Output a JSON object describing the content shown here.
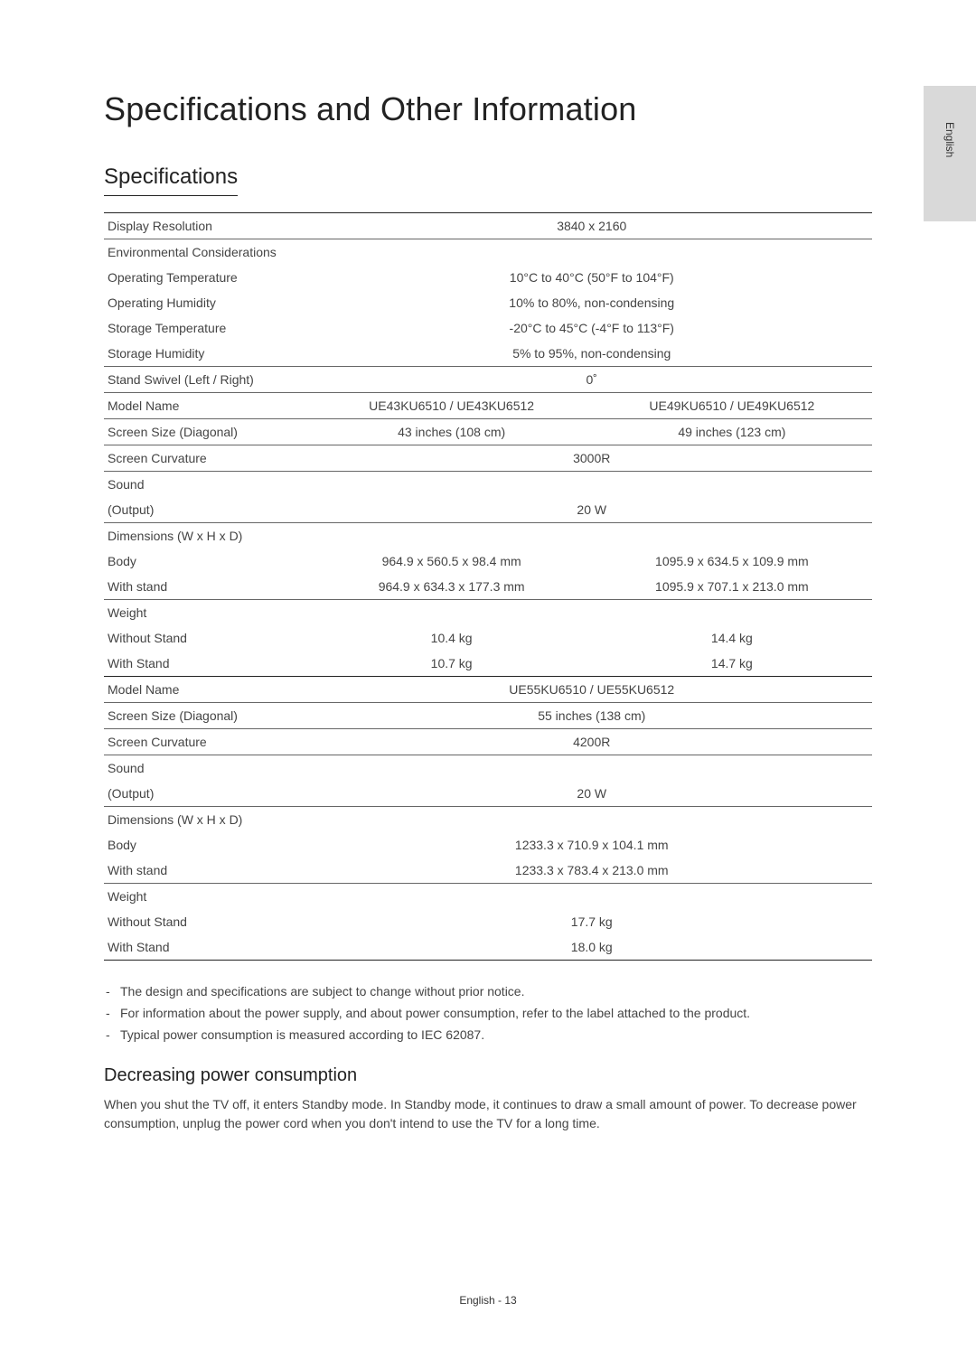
{
  "sideTab": "English",
  "title": "Specifications and Other Information",
  "sectionHeading": "Specifications",
  "table": {
    "rows": [
      {
        "label": "Display Resolution",
        "span": "3840 x 2160",
        "ruleBelow": true,
        "ruleAbove": true
      },
      {
        "label": "Environmental Considerations",
        "span": ""
      },
      {
        "label": "Operating Temperature",
        "span": "10°C to 40°C (50°F to 104°F)"
      },
      {
        "label": "Operating Humidity",
        "span": "10% to 80%, non-condensing"
      },
      {
        "label": "Storage Temperature",
        "span": "-20°C to 45°C (-4°F to 113°F)"
      },
      {
        "label": "Storage Humidity",
        "span": "5% to 95%, non-condensing",
        "ruleBelow": true
      },
      {
        "label": "Stand Swivel (Left / Right)",
        "span": "0˚",
        "ruleBelow": true
      },
      {
        "label": "Model Name",
        "col1": "UE43KU6510 / UE43KU6512",
        "col2": "UE49KU6510 / UE49KU6512",
        "ruleBelow": true
      },
      {
        "label": "Screen Size (Diagonal)",
        "col1": "43 inches (108 cm)",
        "col2": "49 inches (123 cm)",
        "ruleBelow": true
      },
      {
        "label": "Screen Curvature",
        "span": "3000R",
        "ruleBelow": true
      },
      {
        "label": "Sound",
        "span": ""
      },
      {
        "label": "(Output)",
        "span": "20 W",
        "ruleBelow": true
      },
      {
        "label": "Dimensions (W x H x D)",
        "span": ""
      },
      {
        "label": "Body",
        "col1": "964.9 x 560.5 x 98.4 mm",
        "col2": "1095.9 x 634.5 x 109.9 mm"
      },
      {
        "label": "With stand",
        "col1": "964.9 x 634.3 x 177.3 mm",
        "col2": "1095.9 x 707.1 x 213.0 mm",
        "ruleBelow": true
      },
      {
        "label": "Weight",
        "span": ""
      },
      {
        "label": "Without Stand",
        "col1": "10.4 kg",
        "col2": "14.4 kg"
      },
      {
        "label": "With Stand",
        "col1": "10.7 kg",
        "col2": "14.7 kg",
        "ruleBelow": true,
        "thick": true
      },
      {
        "label": "Model Name",
        "span": "UE55KU6510 / UE55KU6512",
        "ruleBelow": true
      },
      {
        "label": "Screen Size (Diagonal)",
        "span": "55 inches (138 cm)",
        "ruleBelow": true
      },
      {
        "label": "Screen Curvature",
        "span": "4200R",
        "ruleBelow": true
      },
      {
        "label": "Sound",
        "span": ""
      },
      {
        "label": "(Output)",
        "span": "20 W",
        "ruleBelow": true
      },
      {
        "label": "Dimensions (W x H x D)",
        "span": ""
      },
      {
        "label": "Body",
        "span": "1233.3 x 710.9 x 104.1 mm"
      },
      {
        "label": "With stand",
        "span": "1233.3 x 783.4 x 213.0 mm",
        "ruleBelow": true
      },
      {
        "label": "Weight",
        "span": ""
      },
      {
        "label": "Without Stand",
        "span": "17.7 kg"
      },
      {
        "label": "With Stand",
        "span": "18.0 kg",
        "ruleBelow": true,
        "thick": true
      }
    ]
  },
  "notes": [
    "The design and specifications are subject to change without prior notice.",
    "For information about the power supply, and about power consumption, refer to the label attached to the product.",
    "Typical power consumption is measured according to IEC 62087."
  ],
  "subHeading": "Decreasing power consumption",
  "subBody": "When you shut the TV off, it enters Standby mode. In Standby mode, it continues to draw a small amount of power. To decrease power consumption, unplug the power cord when you don't intend to use the TV for a long time.",
  "footer": "English - 13"
}
